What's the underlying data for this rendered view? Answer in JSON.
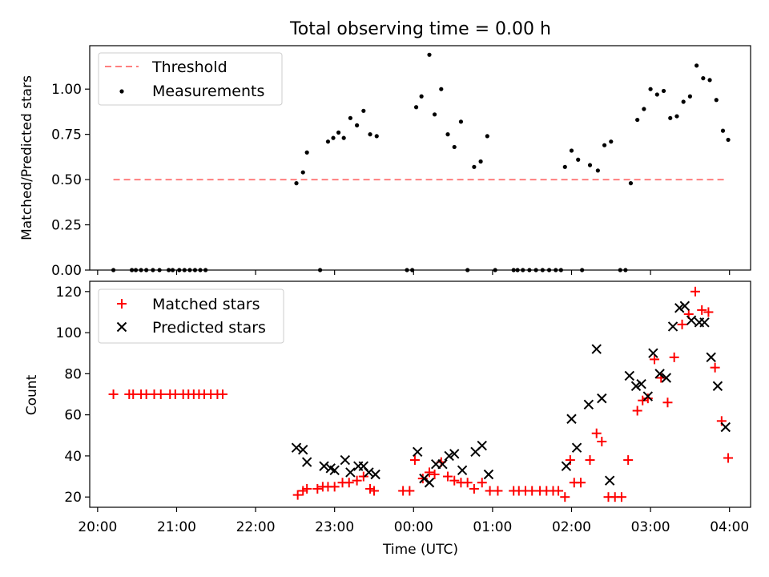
{
  "title": "Total observing time = 0.00 h",
  "colors": {
    "threshold": "#ff7f7f",
    "measurement": "#000000",
    "matched": "#ff0000",
    "predicted": "#000000"
  },
  "chart_data": [
    {
      "type": "scatter",
      "ylabel": "Matched/Predicted stars",
      "ylim": [
        0,
        1.24
      ],
      "yticks": [
        "0.00",
        "0.25",
        "0.50",
        "0.75",
        "1.00"
      ],
      "xlim": [
        "19:54",
        "04:16"
      ],
      "x_ticks_shown": false,
      "grid": false,
      "legend": {
        "position": "top-left",
        "entries": [
          {
            "label": "Threshold",
            "style": "dashed-line"
          },
          {
            "label": "Measurements",
            "style": "dot"
          }
        ]
      },
      "threshold": {
        "y": 0.5,
        "x_start": "20:12",
        "x_end": "03:58"
      },
      "series": [
        {
          "name": "Measurements",
          "points": [
            [
              "20:12",
              0
            ],
            [
              "20:26",
              0
            ],
            [
              "20:29",
              0
            ],
            [
              "20:33",
              0
            ],
            [
              "20:37",
              0
            ],
            [
              "20:42",
              0
            ],
            [
              "20:47",
              0
            ],
            [
              "20:54",
              0
            ],
            [
              "20:57",
              0
            ],
            [
              "21:02",
              0
            ],
            [
              "21:06",
              0
            ],
            [
              "21:10",
              0
            ],
            [
              "21:14",
              0
            ],
            [
              "21:18",
              0
            ],
            [
              "21:22",
              0
            ],
            [
              "22:31",
              0.48
            ],
            [
              "22:36",
              0.54
            ],
            [
              "22:39",
              0.65
            ],
            [
              "22:49",
              0
            ],
            [
              "22:55",
              0.71
            ],
            [
              "22:59",
              0.73
            ],
            [
              "23:03",
              0.76
            ],
            [
              "23:07",
              0.73
            ],
            [
              "23:12",
              0.84
            ],
            [
              "23:17",
              0.8
            ],
            [
              "23:22",
              0.88
            ],
            [
              "23:27",
              0.75
            ],
            [
              "23:32",
              0.74
            ],
            [
              "23:55",
              0
            ],
            [
              "23:59",
              0
            ],
            [
              "00:02",
              0.9
            ],
            [
              "00:06",
              0.96
            ],
            [
              "00:12",
              1.19
            ],
            [
              "00:16",
              0.86
            ],
            [
              "00:21",
              1.0
            ],
            [
              "00:26",
              0.75
            ],
            [
              "00:31",
              0.68
            ],
            [
              "00:36",
              0.82
            ],
            [
              "00:41",
              0
            ],
            [
              "00:46",
              0.57
            ],
            [
              "00:51",
              0.6
            ],
            [
              "00:56",
              0.74
            ],
            [
              "01:02",
              0
            ],
            [
              "01:16",
              0
            ],
            [
              "01:19",
              0
            ],
            [
              "01:23",
              0
            ],
            [
              "01:28",
              0
            ],
            [
              "01:33",
              0
            ],
            [
              "01:38",
              0
            ],
            [
              "01:43",
              0
            ],
            [
              "01:48",
              0
            ],
            [
              "01:52",
              0
            ],
            [
              "01:55",
              0.57
            ],
            [
              "02:00",
              0.66
            ],
            [
              "02:05",
              0.61
            ],
            [
              "02:08",
              0
            ],
            [
              "02:14",
              0.58
            ],
            [
              "02:20",
              0.55
            ],
            [
              "02:25",
              0.69
            ],
            [
              "02:30",
              0.71
            ],
            [
              "02:37",
              0
            ],
            [
              "02:41",
              0
            ],
            [
              "02:45",
              0.48
            ],
            [
              "02:50",
              0.83
            ],
            [
              "02:55",
              0.89
            ],
            [
              "03:00",
              1.0
            ],
            [
              "03:05",
              0.97
            ],
            [
              "03:10",
              0.99
            ],
            [
              "03:15",
              0.84
            ],
            [
              "03:20",
              0.85
            ],
            [
              "03:25",
              0.93
            ],
            [
              "03:30",
              0.96
            ],
            [
              "03:35",
              1.13
            ],
            [
              "03:40",
              1.06
            ],
            [
              "03:45",
              1.05
            ],
            [
              "03:50",
              0.94
            ],
            [
              "03:55",
              0.77
            ],
            [
              "03:59",
              0.72
            ]
          ]
        }
      ]
    },
    {
      "type": "scatter",
      "xlabel": "Time (UTC)",
      "ylabel": "Count",
      "ylim": [
        15,
        125
      ],
      "yticks": [
        "20",
        "40",
        "60",
        "80",
        "100",
        "120"
      ],
      "xlim": [
        "19:54",
        "04:16"
      ],
      "xticks": [
        "20:00",
        "21:00",
        "22:00",
        "23:00",
        "00:00",
        "01:00",
        "02:00",
        "03:00",
        "04:00"
      ],
      "grid": false,
      "legend": {
        "position": "top-left",
        "entries": [
          {
            "label": "Matched stars",
            "style": "plus",
            "color": "#ff0000"
          },
          {
            "label": "Predicted stars",
            "style": "x",
            "color": "#000000"
          }
        ]
      },
      "series": [
        {
          "name": "Matched stars",
          "points": [
            [
              "20:12",
              70
            ],
            [
              "20:24",
              70
            ],
            [
              "20:27",
              70
            ],
            [
              "20:33",
              70
            ],
            [
              "20:37",
              70
            ],
            [
              "20:43",
              70
            ],
            [
              "20:48",
              70
            ],
            [
              "20:55",
              70
            ],
            [
              "20:59",
              70
            ],
            [
              "21:05",
              70
            ],
            [
              "21:09",
              70
            ],
            [
              "21:13",
              70
            ],
            [
              "21:17",
              70
            ],
            [
              "21:21",
              70
            ],
            [
              "21:26",
              70
            ],
            [
              "21:31",
              70
            ],
            [
              "21:35",
              70
            ],
            [
              "22:32",
              21
            ],
            [
              "22:36",
              23
            ],
            [
              "22:39",
              24
            ],
            [
              "22:47",
              24
            ],
            [
              "22:51",
              25
            ],
            [
              "22:55",
              25
            ],
            [
              "23:00",
              25
            ],
            [
              "23:06",
              27
            ],
            [
              "23:11",
              27
            ],
            [
              "23:17",
              28
            ],
            [
              "23:22",
              30
            ],
            [
              "23:27",
              24
            ],
            [
              "23:30",
              23
            ],
            [
              "23:52",
              23
            ],
            [
              "23:57",
              23
            ],
            [
              "00:01",
              38
            ],
            [
              "00:07",
              29
            ],
            [
              "00:12",
              32
            ],
            [
              "00:16",
              31
            ],
            [
              "00:21",
              37
            ],
            [
              "00:26",
              30
            ],
            [
              "00:31",
              28
            ],
            [
              "00:36",
              27
            ],
            [
              "00:41",
              27
            ],
            [
              "00:46",
              24
            ],
            [
              "00:52",
              27
            ],
            [
              "00:58",
              23
            ],
            [
              "01:04",
              23
            ],
            [
              "01:16",
              23
            ],
            [
              "01:20",
              23
            ],
            [
              "01:25",
              23
            ],
            [
              "01:30",
              23
            ],
            [
              "01:36",
              23
            ],
            [
              "01:41",
              23
            ],
            [
              "01:46",
              23
            ],
            [
              "01:50",
              23
            ],
            [
              "01:55",
              20
            ],
            [
              "01:59",
              38
            ],
            [
              "02:02",
              27
            ],
            [
              "02:07",
              27
            ],
            [
              "02:14",
              38
            ],
            [
              "02:19",
              51
            ],
            [
              "02:23",
              47
            ],
            [
              "02:28",
              20
            ],
            [
              "02:33",
              20
            ],
            [
              "02:38",
              20
            ],
            [
              "02:43",
              38
            ],
            [
              "02:50",
              62
            ],
            [
              "02:54",
              67
            ],
            [
              "02:58",
              68
            ],
            [
              "03:03",
              87
            ],
            [
              "03:08",
              78
            ],
            [
              "03:13",
              66
            ],
            [
              "03:18",
              88
            ],
            [
              "03:24",
              104
            ],
            [
              "03:29",
              109
            ],
            [
              "03:34",
              120
            ],
            [
              "03:39",
              111
            ],
            [
              "03:44",
              110
            ],
            [
              "03:49",
              83
            ],
            [
              "03:54",
              57
            ],
            [
              "03:59",
              39
            ]
          ]
        },
        {
          "name": "Predicted stars",
          "points": [
            [
              "22:31",
              44
            ],
            [
              "22:36",
              43
            ],
            [
              "22:39",
              37
            ],
            [
              "22:52",
              35
            ],
            [
              "22:57",
              34
            ],
            [
              "23:00",
              33
            ],
            [
              "23:08",
              38
            ],
            [
              "23:12",
              32
            ],
            [
              "23:18",
              35
            ],
            [
              "23:22",
              35
            ],
            [
              "23:26",
              32
            ],
            [
              "23:31",
              31
            ],
            [
              "00:03",
              42
            ],
            [
              "00:08",
              29
            ],
            [
              "00:12",
              27
            ],
            [
              "00:17",
              36
            ],
            [
              "00:22",
              36
            ],
            [
              "00:27",
              40
            ],
            [
              "00:31",
              41
            ],
            [
              "00:37",
              33
            ],
            [
              "00:47",
              42
            ],
            [
              "00:52",
              45
            ],
            [
              "00:57",
              31
            ],
            [
              "01:56",
              35
            ],
            [
              "02:00",
              58
            ],
            [
              "02:04",
              44
            ],
            [
              "02:13",
              65
            ],
            [
              "02:19",
              92
            ],
            [
              "02:23",
              68
            ],
            [
              "02:29",
              28
            ],
            [
              "02:44",
              79
            ],
            [
              "02:49",
              74
            ],
            [
              "02:53",
              75
            ],
            [
              "02:58",
              69
            ],
            [
              "03:02",
              90
            ],
            [
              "03:07",
              80
            ],
            [
              "03:12",
              78
            ],
            [
              "03:17",
              103
            ],
            [
              "03:22",
              112
            ],
            [
              "03:26",
              113
            ],
            [
              "03:31",
              106
            ],
            [
              "03:37",
              105
            ],
            [
              "03:41",
              105
            ],
            [
              "03:46",
              88
            ],
            [
              "03:51",
              74
            ],
            [
              "03:57",
              54
            ]
          ]
        }
      ]
    }
  ]
}
